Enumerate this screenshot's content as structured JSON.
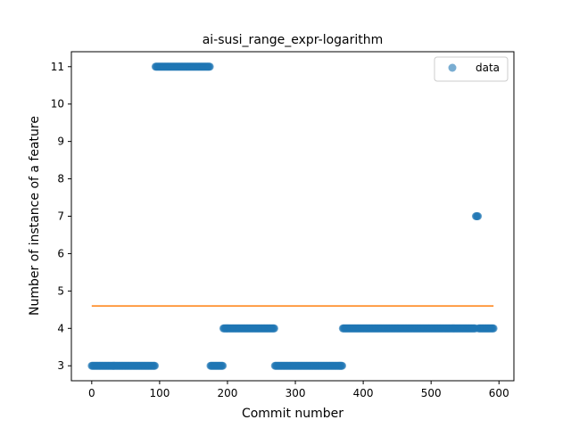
{
  "chart_data": {
    "type": "scatter",
    "title": "ai-susi_range_expr-logarithm",
    "xlabel": "Commit number",
    "ylabel": "Number of instance of a feature",
    "xlim": [
      -30,
      622
    ],
    "ylim": [
      2.6,
      11.4
    ],
    "xticks": [
      0,
      100,
      200,
      300,
      400,
      500,
      600
    ],
    "yticks": [
      3,
      4,
      5,
      6,
      7,
      8,
      9,
      10,
      11
    ],
    "grid": false,
    "legend": {
      "position": "top-right",
      "entries": [
        "data"
      ]
    },
    "colors": {
      "data": "#1f77b4",
      "mean_line": "#ff7f0e"
    },
    "series": [
      {
        "name": "data",
        "kind": "scatter",
        "segments": [
          {
            "x_start": 0,
            "x_end": 93,
            "y": 3
          },
          {
            "x_start": 94,
            "x_end": 174,
            "y": 11
          },
          {
            "x_start": 175,
            "x_end": 193,
            "y": 3
          },
          {
            "x_start": 194,
            "x_end": 269,
            "y": 4
          },
          {
            "x_start": 270,
            "x_end": 369,
            "y": 3
          },
          {
            "x_start": 370,
            "x_end": 565,
            "y": 4
          },
          {
            "x_start": 566,
            "x_end": 569,
            "y": 7
          },
          {
            "x_start": 570,
            "x_end": 592,
            "y": 4
          }
        ]
      },
      {
        "kind": "line",
        "x": [
          0,
          592
        ],
        "y": [
          4.6,
          4.6
        ]
      }
    ]
  }
}
